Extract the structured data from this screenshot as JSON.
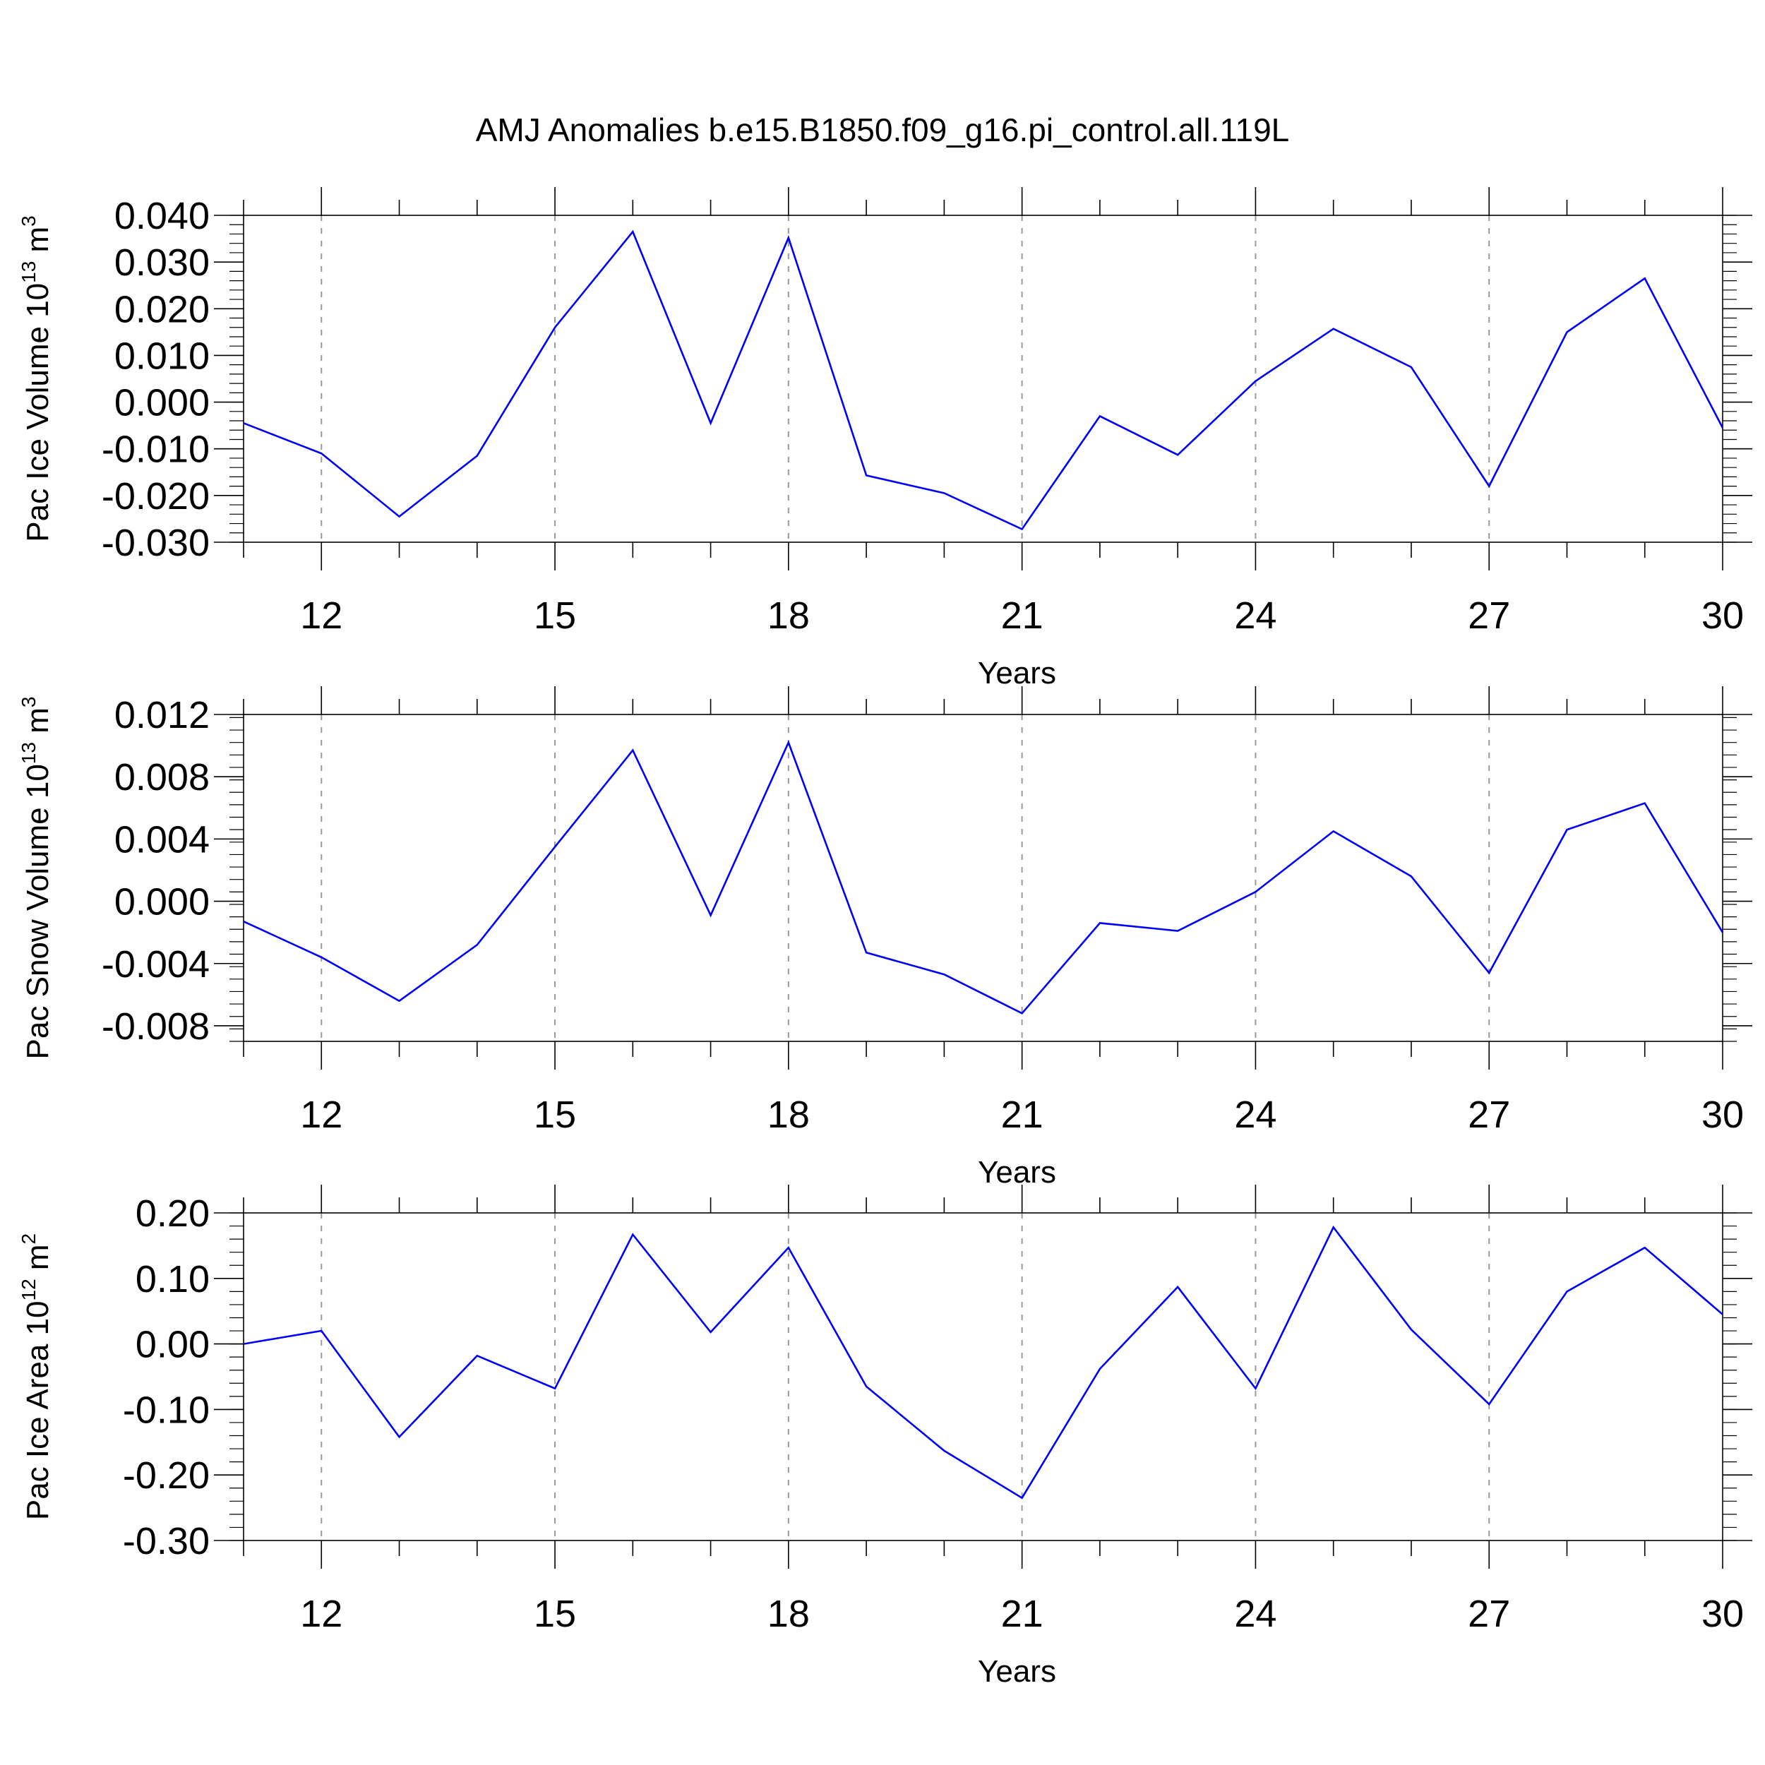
{
  "title": "AMJ Anomalies b.e15.B1850.f09_g16.pi_control.all.119L",
  "chart_data": [
    {
      "type": "line",
      "xlabel": "Years",
      "ylabel_text": "Pac Ice Volume 10",
      "ylabel_exp": "13",
      "ylabel_unit": " m",
      "ylabel_unit_exp": "3",
      "x": [
        11,
        12,
        13,
        14,
        15,
        16,
        17,
        18,
        19,
        20,
        21,
        22,
        23,
        24,
        25,
        26,
        27,
        28,
        29,
        30
      ],
      "values": [
        -0.0045,
        -0.011,
        -0.0245,
        -0.0115,
        0.016,
        0.0365,
        -0.0045,
        0.0352,
        -0.0157,
        -0.0195,
        -0.0272,
        -0.003,
        -0.0113,
        0.0045,
        0.0157,
        0.0075,
        -0.018,
        0.015,
        0.0265,
        -0.0055
      ],
      "xlim": [
        11,
        30
      ],
      "ylim": [
        -0.03,
        0.04
      ],
      "xticks": [
        12,
        15,
        18,
        21,
        24,
        27,
        30
      ],
      "xtick_labels": [
        "12",
        "15",
        "18",
        "21",
        "24",
        "27",
        "30"
      ],
      "yticks": [
        -0.03,
        -0.02,
        -0.01,
        0.0,
        0.01,
        0.02,
        0.03,
        0.04
      ],
      "ytick_labels": [
        "-0.030",
        "-0.020",
        "-0.010",
        "0.000",
        "0.010",
        "0.020",
        "0.030",
        "0.040"
      ],
      "grid": "dashed vertical at major x ticks",
      "color": "#0000ff"
    },
    {
      "type": "line",
      "xlabel": "Years",
      "ylabel_text": "Pac Snow Volume 10",
      "ylabel_exp": "13",
      "ylabel_unit": " m",
      "ylabel_unit_exp": "3",
      "x": [
        11,
        12,
        13,
        14,
        15,
        16,
        17,
        18,
        19,
        20,
        21,
        22,
        23,
        24,
        25,
        26,
        27,
        28,
        29,
        30
      ],
      "values": [
        -0.0013,
        -0.0036,
        -0.0064,
        -0.0028,
        0.0035,
        0.0097,
        -0.0009,
        0.0102,
        -0.0033,
        -0.0047,
        -0.0072,
        -0.0014,
        -0.0019,
        0.0006,
        0.0045,
        0.0016,
        -0.0046,
        0.0046,
        0.0063,
        -0.002
      ],
      "xlim": [
        11,
        30
      ],
      "ylim": [
        -0.009,
        0.012
      ],
      "xticks": [
        12,
        15,
        18,
        21,
        24,
        27,
        30
      ],
      "xtick_labels": [
        "12",
        "15",
        "18",
        "21",
        "24",
        "27",
        "30"
      ],
      "yticks": [
        -0.008,
        -0.004,
        0.0,
        0.004,
        0.008,
        0.012
      ],
      "ytick_labels": [
        "-0.008",
        "-0.004",
        "0.000",
        "0.004",
        "0.008",
        "0.012"
      ],
      "grid": "dashed vertical at major x ticks",
      "color": "#0000ff"
    },
    {
      "type": "line",
      "xlabel": "Years",
      "ylabel_text": "Pac Ice Area 10",
      "ylabel_exp": "12",
      "ylabel_unit": " m",
      "ylabel_unit_exp": "2",
      "x": [
        11,
        12,
        13,
        14,
        15,
        16,
        17,
        18,
        19,
        20,
        21,
        22,
        23,
        24,
        25,
        26,
        27,
        28,
        29,
        30
      ],
      "values": [
        0.0,
        0.02,
        -0.142,
        -0.018,
        -0.068,
        0.167,
        0.018,
        0.147,
        -0.065,
        -0.163,
        -0.235,
        -0.038,
        0.087,
        -0.068,
        0.178,
        0.022,
        -0.092,
        0.08,
        0.147,
        0.045
      ],
      "xlim": [
        11,
        30
      ],
      "ylim": [
        -0.3,
        0.2
      ],
      "xticks": [
        12,
        15,
        18,
        21,
        24,
        27,
        30
      ],
      "xtick_labels": [
        "12",
        "15",
        "18",
        "21",
        "24",
        "27",
        "30"
      ],
      "yticks": [
        -0.3,
        -0.2,
        -0.1,
        0.0,
        0.1,
        0.2
      ],
      "ytick_labels": [
        "-0.30",
        "-0.20",
        "-0.10",
        "0.00",
        "0.10",
        "0.20"
      ],
      "grid": "dashed vertical at major x ticks",
      "color": "#0000ff"
    }
  ]
}
